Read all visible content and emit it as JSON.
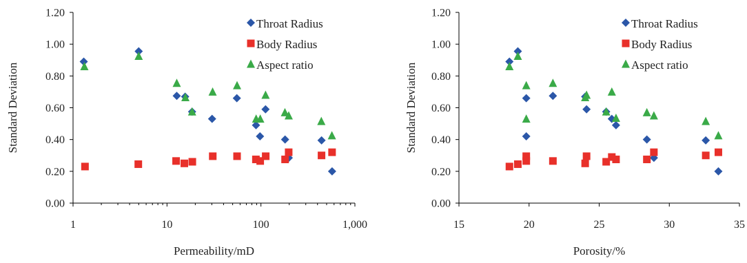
{
  "chart_data": [
    {
      "type": "scatter",
      "xlabel": "Permeability/mD",
      "ylabel": "Standard Deviation",
      "xscale": "log",
      "xlim": [
        1,
        1000
      ],
      "ylim": [
        0,
        1.2
      ],
      "xticks": [
        1,
        10,
        100,
        1000
      ],
      "xtick_labels": [
        "1",
        "10",
        "100",
        "1,000"
      ],
      "yticks": [
        0,
        0.2,
        0.4,
        0.6,
        0.8,
        1.0,
        1.2
      ],
      "ytick_labels": [
        "0.00",
        "0.20",
        "0.40",
        "0.60",
        "0.80",
        "1.00",
        "1.20"
      ],
      "grid": false,
      "legend_position": "top-right",
      "series": [
        {
          "name": "Throat Radius",
          "marker": "diamond",
          "color": "#2b57a8",
          "x": [
            1.3,
            5.0,
            12.7,
            15.6,
            18.5,
            30.2,
            55.4,
            88.6,
            97.7,
            111.9,
            180.7,
            197.7,
            441.8,
            571.7
          ],
          "y": [
            0.89,
            0.955,
            0.675,
            0.67,
            0.575,
            0.53,
            0.66,
            0.49,
            0.42,
            0.59,
            0.4,
            0.285,
            0.395,
            0.2
          ]
        },
        {
          "name": "Body Radius",
          "marker": "square",
          "color": "#e8302a",
          "x": [
            1.34,
            4.95,
            12.5,
            15.3,
            18.6,
            30.7,
            55.7,
            88.4,
            98.2,
            112.4,
            180.7,
            197.3,
            441.4,
            571.3
          ],
          "y": [
            0.23,
            0.245,
            0.265,
            0.25,
            0.26,
            0.295,
            0.295,
            0.275,
            0.265,
            0.295,
            0.275,
            0.32,
            0.3,
            0.32
          ]
        },
        {
          "name": "Aspect ratio",
          "marker": "triangle",
          "color": "#3aaa48",
          "x": [
            1.32,
            5.0,
            12.7,
            15.7,
            18.5,
            30.6,
            55.7,
            88.9,
            98.3,
            112.0,
            180.0,
            197.5,
            439.1,
            569.2
          ],
          "y": [
            0.86,
            0.925,
            0.755,
            0.665,
            0.575,
            0.7,
            0.74,
            0.53,
            0.53,
            0.68,
            0.57,
            0.55,
            0.515,
            0.425
          ]
        }
      ]
    },
    {
      "type": "scatter",
      "xlabel": "Porosity/%",
      "ylabel": "Standard Deviation",
      "xscale": "linear",
      "xlim": [
        15,
        35
      ],
      "ylim": [
        0,
        1.2
      ],
      "xticks": [
        15,
        20,
        25,
        30,
        35
      ],
      "xtick_labels": [
        "15",
        "20",
        "25",
        "30",
        "35"
      ],
      "yticks": [
        0,
        0.2,
        0.4,
        0.6,
        0.8,
        1.0,
        1.2
      ],
      "ytick_labels": [
        "0.00",
        "0.20",
        "0.40",
        "0.60",
        "0.80",
        "1.00",
        "1.20"
      ],
      "grid": false,
      "legend_position": "top-right",
      "series": [
        {
          "name": "Throat Radius",
          "marker": "diamond",
          "color": "#2b57a8",
          "x": [
            18.6,
            19.2,
            19.8,
            19.8,
            21.7,
            24.0,
            24.1,
            25.5,
            25.9,
            26.2,
            28.4,
            28.9,
            32.6,
            33.5
          ],
          "y": [
            0.89,
            0.955,
            0.66,
            0.42,
            0.675,
            0.67,
            0.59,
            0.575,
            0.53,
            0.49,
            0.4,
            0.285,
            0.395,
            0.2
          ]
        },
        {
          "name": "Body Radius",
          "marker": "square",
          "color": "#e8302a",
          "x": [
            18.6,
            19.2,
            19.8,
            19.8,
            21.7,
            24.0,
            24.1,
            25.5,
            25.9,
            26.2,
            28.4,
            28.9,
            32.6,
            33.5
          ],
          "y": [
            0.23,
            0.245,
            0.295,
            0.265,
            0.265,
            0.25,
            0.295,
            0.26,
            0.29,
            0.275,
            0.275,
            0.32,
            0.3,
            0.32
          ]
        },
        {
          "name": "Aspect ratio",
          "marker": "triangle",
          "color": "#3aaa48",
          "x": [
            18.6,
            19.2,
            19.8,
            19.8,
            21.7,
            24.0,
            24.1,
            25.5,
            25.9,
            26.2,
            28.4,
            28.9,
            32.6,
            33.5
          ],
          "y": [
            0.86,
            0.925,
            0.74,
            0.53,
            0.755,
            0.665,
            0.68,
            0.575,
            0.7,
            0.535,
            0.57,
            0.55,
            0.515,
            0.425
          ]
        }
      ]
    }
  ]
}
